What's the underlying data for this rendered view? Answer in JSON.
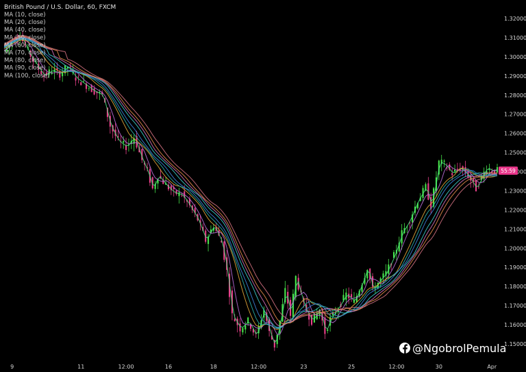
{
  "chart_data": {
    "type": "candlestick",
    "title": "British Pound / U.S. Dollar, 60, FXCM",
    "legend_position": "top-left",
    "grid": false,
    "ylim": [
      1.14,
      1.32
    ],
    "y_ticks": [
      "1.32000",
      "1.31000",
      "1.30000",
      "1.29000",
      "1.28000",
      "1.27000",
      "1.26000",
      "1.25000",
      "1.24000",
      "1.23000",
      "1.22000",
      "1.21000",
      "1.20000",
      "1.19000",
      "1.18000",
      "1.17000",
      "1.16000",
      "1.15000"
    ],
    "x_ticks": [
      "9",
      "11",
      "12:00",
      "16",
      "18",
      "12:00",
      "23",
      "25",
      "12:00",
      "30",
      "Apr"
    ],
    "x_tick_positions": [
      3,
      29,
      46,
      62,
      79,
      96,
      113,
      131,
      148,
      164,
      184
    ],
    "x_range": [
      0,
      186
    ],
    "current_price_label": "55:59",
    "current_price": 1.2405,
    "price_path": [
      [
        0,
        1.303
      ],
      [
        3,
        1.308
      ],
      [
        6,
        1.311
      ],
      [
        9,
        1.303
      ],
      [
        12,
        1.296
      ],
      [
        15,
        1.29
      ],
      [
        18,
        1.293
      ],
      [
        21,
        1.291
      ],
      [
        24,
        1.295
      ],
      [
        27,
        1.289
      ],
      [
        30,
        1.286
      ],
      [
        34,
        1.282
      ],
      [
        37,
        1.28
      ],
      [
        40,
        1.264
      ],
      [
        43,
        1.256
      ],
      [
        46,
        1.253
      ],
      [
        49,
        1.258
      ],
      [
        52,
        1.246
      ],
      [
        54,
        1.24
      ],
      [
        56,
        1.231
      ],
      [
        58,
        1.238
      ],
      [
        61,
        1.233
      ],
      [
        64,
        1.229
      ],
      [
        67,
        1.228
      ],
      [
        70,
        1.222
      ],
      [
        73,
        1.215
      ],
      [
        76,
        1.204
      ],
      [
        79,
        1.212
      ],
      [
        82,
        1.203
      ],
      [
        84,
        1.188
      ],
      [
        86,
        1.165
      ],
      [
        89,
        1.158
      ],
      [
        92,
        1.162
      ],
      [
        95,
        1.154
      ],
      [
        98,
        1.168
      ],
      [
        100,
        1.156
      ],
      [
        102,
        1.149
      ],
      [
        104,
        1.162
      ],
      [
        106,
        1.178
      ],
      [
        108,
        1.165
      ],
      [
        110,
        1.185
      ],
      [
        113,
        1.17
      ],
      [
        116,
        1.162
      ],
      [
        119,
        1.168
      ],
      [
        121,
        1.156
      ],
      [
        123,
        1.163
      ],
      [
        126,
        1.169
      ],
      [
        129,
        1.176
      ],
      [
        132,
        1.172
      ],
      [
        135,
        1.182
      ],
      [
        137,
        1.19
      ],
      [
        139,
        1.178
      ],
      [
        141,
        1.182
      ],
      [
        144,
        1.187
      ],
      [
        147,
        1.196
      ],
      [
        150,
        1.208
      ],
      [
        153,
        1.215
      ],
      [
        156,
        1.225
      ],
      [
        159,
        1.232
      ],
      [
        161,
        1.222
      ],
      [
        164,
        1.245
      ],
      [
        166,
        1.244
      ],
      [
        169,
        1.239
      ],
      [
        172,
        1.242
      ],
      [
        175,
        1.238
      ],
      [
        178,
        1.231
      ],
      [
        180,
        1.237
      ],
      [
        182,
        1.242
      ],
      [
        184,
        1.2405
      ]
    ],
    "series": [
      {
        "name": "MA (10, close)",
        "period": 10,
        "color": "#4ade80"
      },
      {
        "name": "MA (20, close)",
        "period": 20,
        "color": "#b86bd6"
      },
      {
        "name": "MA (40, close)",
        "period": 40,
        "color": "#e0a63a"
      },
      {
        "name": "MA (50, close)",
        "period": 50,
        "color": "#2bb0a8"
      },
      {
        "name": "MA (60, close)",
        "period": 60,
        "color": "#3f7fd9"
      },
      {
        "name": "MA (70, close)",
        "period": 70,
        "color": "#3cc7c7"
      },
      {
        "name": "MA (80, close)",
        "period": 80,
        "color": "#d070b8"
      },
      {
        "name": "MA (90, close)",
        "period": 90,
        "color": "#e08a4a"
      },
      {
        "name": "MA (100, close)",
        "period": 100,
        "color": "#d07080"
      }
    ],
    "up_color": "#46e34a",
    "down_color": "#e8408a",
    "price_tag_color": "#e8368a",
    "text_color": "#d8d8d8"
  },
  "watermark": {
    "icon": "facebook-logo-icon",
    "text": "@NgobrolPemula"
  }
}
